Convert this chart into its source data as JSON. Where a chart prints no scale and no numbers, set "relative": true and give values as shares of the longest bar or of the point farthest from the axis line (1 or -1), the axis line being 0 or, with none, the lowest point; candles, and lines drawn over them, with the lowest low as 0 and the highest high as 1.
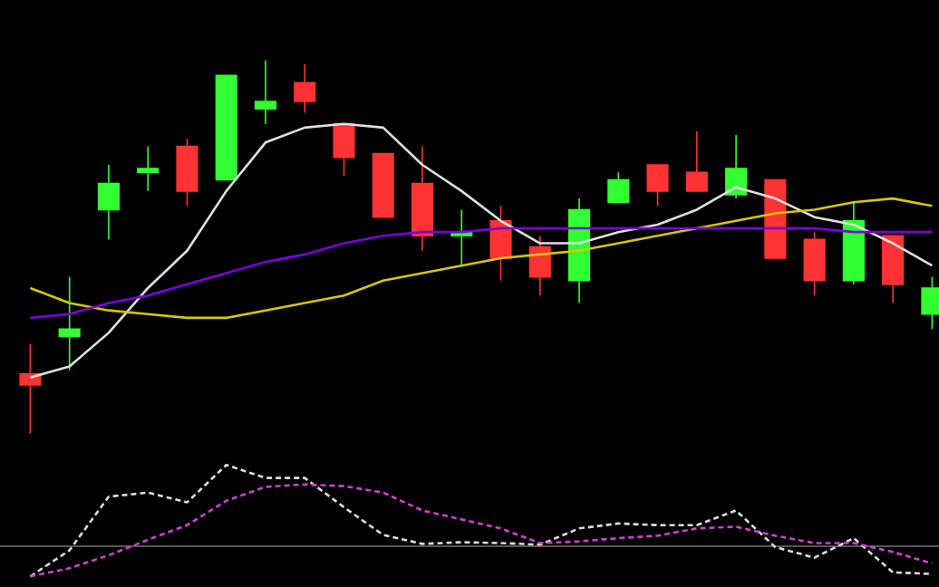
{
  "chart_data": [
    {
      "type": "candlestick",
      "relative": true,
      "categories": [
        null,
        null,
        null,
        null,
        null,
        null,
        null,
        null,
        null,
        null,
        null,
        null,
        null,
        null,
        null,
        null,
        null,
        null,
        null,
        null,
        null,
        null,
        null,
        null
      ],
      "ohlc": [
        [
          0.16,
          0.24,
          0,
          0.13
        ],
        [
          0.26,
          0.42,
          0.17,
          0.28
        ],
        [
          0.6,
          0.72,
          0.52,
          0.67
        ],
        [
          0.7,
          0.77,
          0.65,
          0.71
        ],
        [
          0.77,
          0.79,
          0.61,
          0.65
        ],
        [
          0.68,
          0.96,
          0.68,
          0.96
        ],
        [
          0.87,
          1.0,
          0.83,
          0.89
        ],
        [
          0.94,
          0.99,
          0.86,
          0.89
        ],
        [
          0.83,
          0.83,
          0.69,
          0.74
        ],
        [
          0.75,
          0.75,
          0.58,
          0.58
        ],
        [
          0.67,
          0.77,
          0.49,
          0.53
        ],
        [
          0.53,
          0.6,
          0.45,
          0.54
        ],
        [
          0.57,
          0.61,
          0.41,
          0.47
        ],
        [
          0.5,
          0.53,
          0.37,
          0.42
        ],
        [
          0.41,
          0.63,
          0.35,
          0.6
        ],
        [
          0.62,
          0.7,
          0.62,
          0.68
        ],
        [
          0.72,
          0.72,
          0.61,
          0.65
        ],
        [
          0.7,
          0.81,
          0.65,
          0.65
        ],
        [
          0.64,
          0.8,
          0.63,
          0.71
        ],
        [
          0.68,
          0.68,
          0.47,
          0.47
        ],
        [
          0.52,
          0.54,
          0.37,
          0.41
        ],
        [
          0.41,
          0.62,
          0.4,
          0.57
        ],
        [
          0.53,
          0.53,
          0.35,
          0.4
        ],
        [
          0.32,
          0.42,
          0.28,
          0.39
        ]
      ],
      "colors": [
        "#ff3333",
        "#33ff33",
        "#33ff33",
        "#33ff33",
        "#ff3333",
        "#33ff33",
        "#33ff33",
        "#ff3333",
        "#ff3333",
        "#ff3333",
        "#ff3333",
        "#33ff33",
        "#ff3333",
        "#ff3333",
        "#33ff33",
        "#33ff33",
        "#ff3333",
        "#ff3333",
        "#33ff33",
        "#ff3333",
        "#ff3333",
        "#33ff33",
        "#ff3333",
        "#33ff33"
      ],
      "series": [
        {
          "type": "line",
          "color": "#e0e0e0",
          "values": [
            0.15,
            0.18,
            0.27,
            0.39,
            0.49,
            0.65,
            0.78,
            0.82,
            0.83,
            0.82,
            0.72,
            0.65,
            0.57,
            0.51,
            0.51,
            0.54,
            0.56,
            0.6,
            0.66,
            0.63,
            0.58,
            0.56,
            0.51,
            0.45
          ]
        },
        {
          "type": "line",
          "color": "#d4c800",
          "values": [
            0.39,
            0.35,
            0.33,
            0.32,
            0.31,
            0.31,
            0.33,
            0.35,
            0.37,
            0.41,
            0.43,
            0.45,
            0.47,
            0.48,
            0.49,
            0.51,
            0.53,
            0.55,
            0.57,
            0.59,
            0.6,
            0.62,
            0.63,
            0.61
          ]
        },
        {
          "type": "line",
          "color": "#7a00e0",
          "values": [
            0.31,
            0.32,
            0.35,
            0.37,
            0.4,
            0.43,
            0.46,
            0.48,
            0.51,
            0.53,
            0.54,
            0.54,
            0.55,
            0.55,
            0.55,
            0.55,
            0.55,
            0.55,
            0.55,
            0.55,
            0.55,
            0.54,
            0.54,
            0.54
          ]
        }
      ]
    },
    {
      "type": "line",
      "relative": true,
      "line_style": "dashed",
      "categories": [
        null,
        null,
        null,
        null,
        null,
        null,
        null,
        null,
        null,
        null,
        null,
        null,
        null,
        null,
        null,
        null,
        null,
        null,
        null,
        null,
        null,
        null,
        null,
        null
      ],
      "series": [
        {
          "color": "#dddddd",
          "values": [
            -0.37,
            -0.05,
            0.61,
            0.66,
            0.54,
            1.0,
            0.84,
            0.84,
            0.48,
            0.14,
            0.03,
            0.05,
            0.04,
            0.02,
            0.22,
            0.28,
            0.26,
            0.26,
            0.44,
            -0.01,
            -0.14,
            0.1,
            -0.32,
            -0.34
          ]
        },
        {
          "color": "#cc44cc",
          "values": [
            -0.37,
            -0.27,
            -0.11,
            0.08,
            0.26,
            0.56,
            0.73,
            0.76,
            0.74,
            0.66,
            0.44,
            0.33,
            0.22,
            0.04,
            0.06,
            0.1,
            0.13,
            0.22,
            0.24,
            0.13,
            0.04,
            0.04,
            -0.07,
            -0.21
          ]
        }
      ]
    }
  ]
}
